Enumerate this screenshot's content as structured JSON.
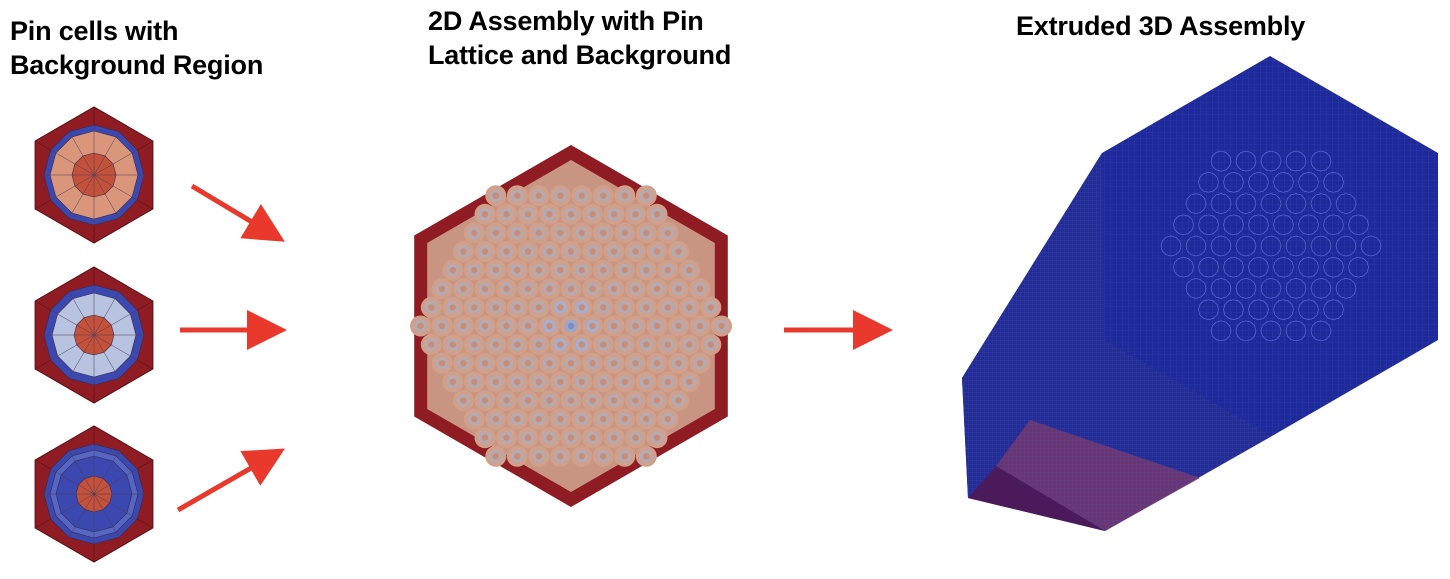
{
  "titles": {
    "pin_cells": "Pin cells with\nBackground Region",
    "assembly_2d": "2D Assembly with Pin\nLattice and Background",
    "assembly_3d": "Extruded 3D Assembly"
  },
  "colors": {
    "background_region": "#8f1c22",
    "fuel_center": "#c4513a",
    "ring_salmon": "#d9967a",
    "ring_lightblue": "#b7c3df",
    "ring_blue": "#3a48b0",
    "ring_midblue": "#5566c4",
    "assembly_pin": "#d0a08a",
    "assembly_pin_inner": "#b5aab2",
    "assembly_center": "#9aa6cc",
    "mesh_blue": "#1f2a9a",
    "arrow": "#e8392c"
  },
  "icons": {
    "arrow": "arrow-right-icon"
  }
}
